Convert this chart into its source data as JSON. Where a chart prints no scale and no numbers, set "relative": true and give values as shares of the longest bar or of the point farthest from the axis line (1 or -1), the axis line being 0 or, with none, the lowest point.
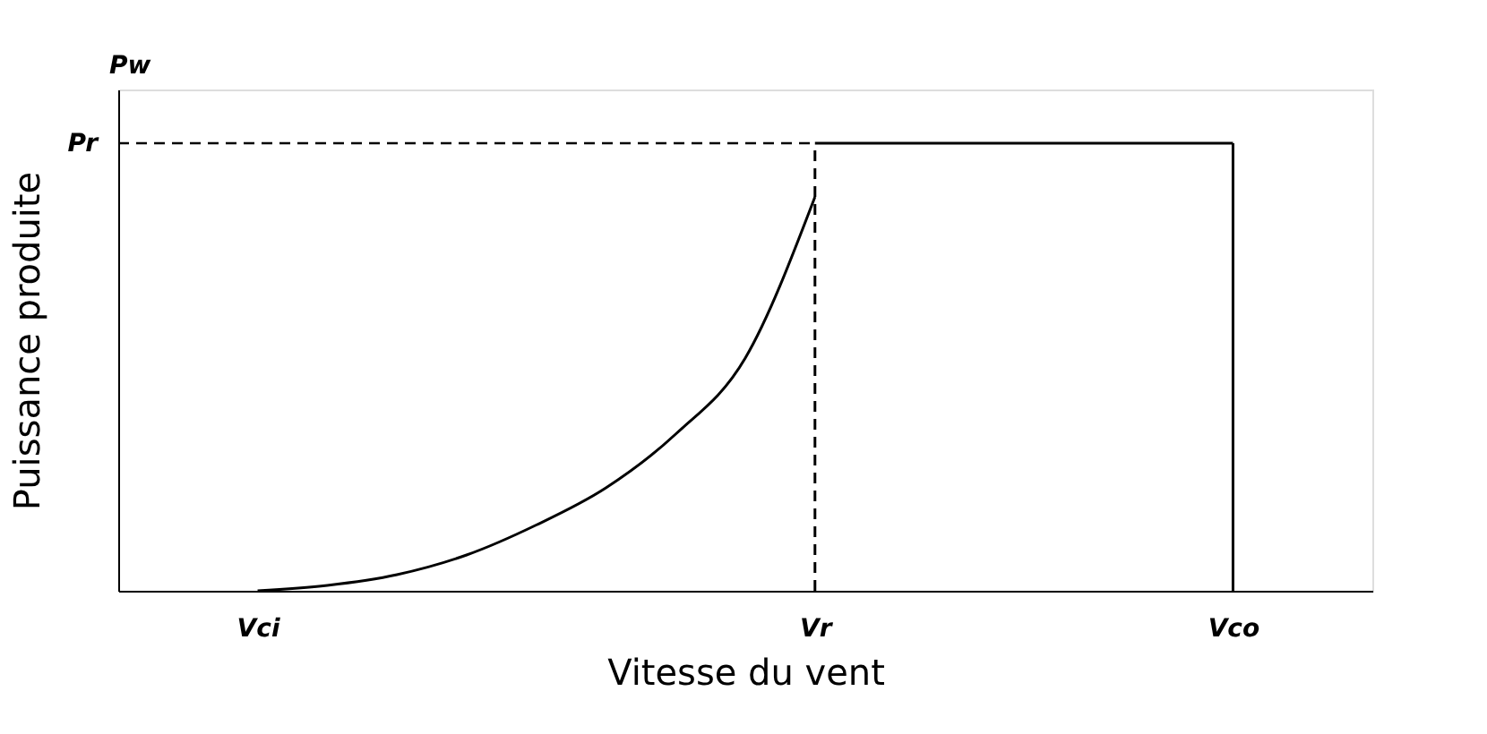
{
  "chart_data": {
    "type": "line",
    "relative": true,
    "xlabel": "Vitesse du vent",
    "ylabel": "Puissance produite",
    "annotations": [
      "Pw"
    ],
    "categories": [
      null,
      null,
      "Vci",
      null,
      null,
      null,
      null,
      null,
      null,
      null,
      "Vr",
      null,
      null,
      null,
      null,
      null,
      "Vco",
      null,
      null
    ],
    "series": [
      {
        "color": "#000000",
        "values": [
          null,
          null,
          0,
          0.012,
          0.036,
          0.08,
          0.147,
          0.23,
          0.35,
          0.52,
          0.88,
          null,
          null,
          null,
          null,
          null,
          null,
          null,
          null
        ]
      },
      {
        "color": "#000000",
        "values": [
          null,
          null,
          null,
          null,
          null,
          null,
          null,
          null,
          null,
          null,
          1,
          1,
          1,
          1,
          1,
          1,
          1,
          null,
          null
        ]
      }
    ],
    "ref_lines": [
      {
        "axis": "x",
        "value": "Vr",
        "line_style": "dashed",
        "color": "#000000"
      },
      {
        "axis": "x",
        "value": "Vco",
        "line_style": "solid",
        "color": "#000000"
      },
      {
        "axis": "y",
        "value": 1,
        "label": "Pr",
        "line_style": "dashed",
        "color": "#000000"
      }
    ],
    "grid": false,
    "marker": "none",
    "line_style": "solid"
  }
}
